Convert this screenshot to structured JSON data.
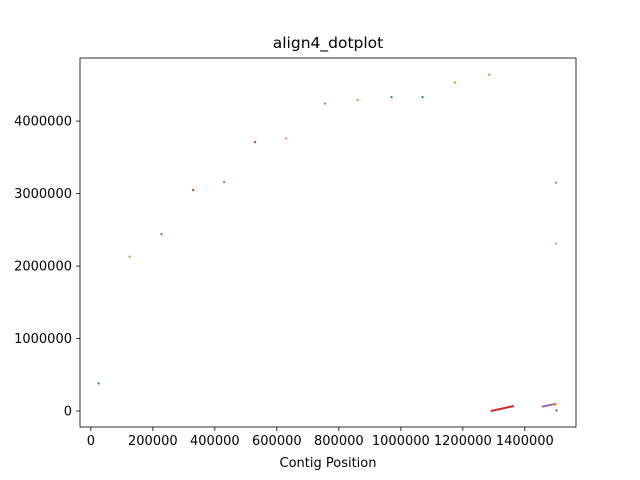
{
  "chart_data": {
    "type": "scatter",
    "title": "align4_dotplot",
    "xlabel": "Contig Position",
    "ylabel": "",
    "xlim": [
      -35000,
      1565000
    ],
    "ylim": [
      -220000,
      4870000
    ],
    "x_ticks": [
      0,
      200000,
      400000,
      600000,
      800000,
      1000000,
      1200000,
      1400000
    ],
    "x_tick_labels": [
      "0",
      "200000",
      "400000",
      "600000",
      "800000",
      "1000000",
      "1200000",
      "1400000"
    ],
    "y_ticks": [
      0,
      1000000,
      2000000,
      3000000,
      4000000
    ],
    "y_tick_labels": [
      "0",
      "1000000",
      "2000000",
      "3000000",
      "4000000"
    ],
    "grid": false,
    "points": [
      {
        "x": 25000,
        "y": 380000,
        "color": "#1f77b4"
      },
      {
        "x": 125000,
        "y": 2130000,
        "color": "#ff7f0e"
      },
      {
        "x": 228000,
        "y": 2440000,
        "color": "#2ca02c"
      },
      {
        "x": 330000,
        "y": 3050000,
        "color": "#d62728"
      },
      {
        "x": 430000,
        "y": 3160000,
        "color": "#9467bd"
      },
      {
        "x": 530000,
        "y": 3710000,
        "color": "#d62728"
      },
      {
        "x": 630000,
        "y": 3760000,
        "color": "#e377c2"
      },
      {
        "x": 755000,
        "y": 4240000,
        "color": "#9467bd"
      },
      {
        "x": 860000,
        "y": 4290000,
        "color": "#ff7f0e"
      },
      {
        "x": 970000,
        "y": 4330000,
        "color": "#1f77b4"
      },
      {
        "x": 1070000,
        "y": 4330000,
        "color": "#1f77b4"
      },
      {
        "x": 1175000,
        "y": 4530000,
        "color": "#ff7f0e"
      },
      {
        "x": 1285000,
        "y": 4640000,
        "color": "#ff7f0e"
      },
      {
        "x": 1500000,
        "y": 3150000,
        "color": "#9467bd"
      },
      {
        "x": 1500000,
        "y": 2310000,
        "color": "#e377c2"
      },
      {
        "x": 1502000,
        "y": 10000,
        "color": "#8c564b"
      }
    ],
    "segments": [
      {
        "x": [
          1290000,
          1365000
        ],
        "y": [
          0,
          70000
        ],
        "color": "#d62728"
      },
      {
        "x": [
          1455000,
          1500000
        ],
        "y": [
          60000,
          100000
        ],
        "color": "#9467bd"
      },
      {
        "x": [
          1495000,
          1502000
        ],
        "y": [
          80000,
          100000
        ],
        "color": "#ff7f0e"
      }
    ]
  }
}
